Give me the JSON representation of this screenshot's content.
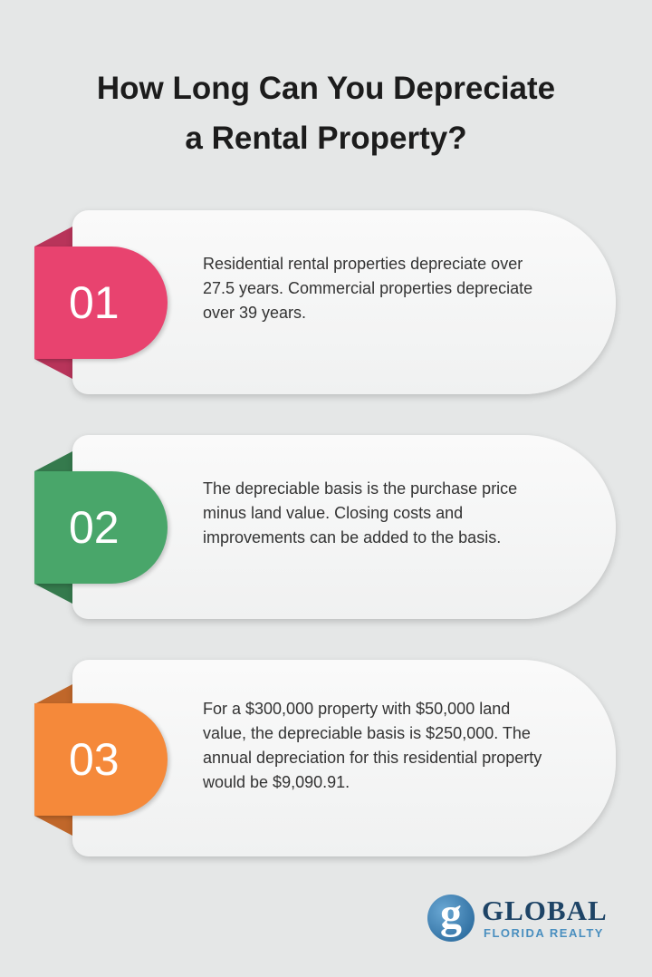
{
  "title": "How Long Can You Depreciate a Rental Property?",
  "title_lines": [
    "How Long Can You Depreciate",
    "a Rental Property?"
  ],
  "items": [
    {
      "number": "01",
      "color": "#e8436f",
      "fold_color": "#b8345a",
      "text": "Residential rental properties depreciate over 27.5 years. Commercial properties depreciate over 39 years."
    },
    {
      "number": "02",
      "color": "#49a66a",
      "fold_color": "#357a4d",
      "text": "The depreciable basis is the purchase price minus land value. Closing costs and improvements can be added to the basis."
    },
    {
      "number": "03",
      "color": "#f5893a",
      "fold_color": "#c0672a",
      "text": "For a $300,000 property with $50,000 land value, the depreciable basis is $250,000. The annual depreciation for this residential property would be $9,090.91."
    }
  ],
  "logo": {
    "mark": "g",
    "name": "GLOBAL",
    "subtitle": "FLORIDA REALTY",
    "icon": "globe-g-logo-icon"
  }
}
